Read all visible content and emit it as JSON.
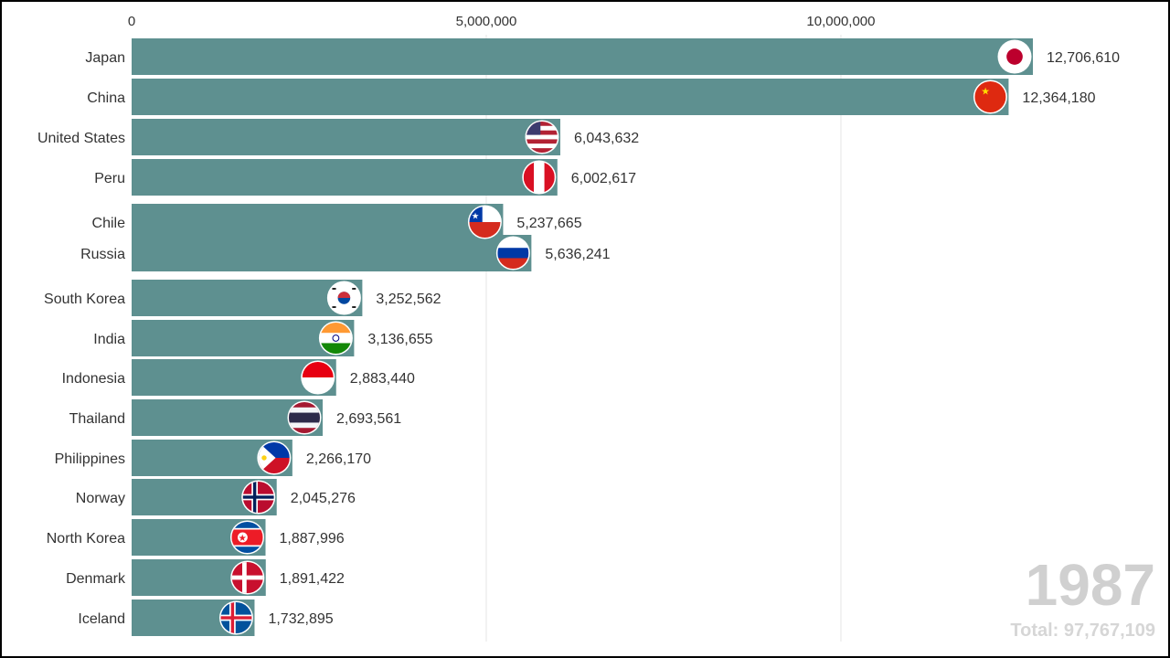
{
  "chart_data": {
    "type": "bar",
    "orientation": "horizontal",
    "bar_color": "#5e9090",
    "grid": true,
    "xlim": [
      0,
      12706610
    ],
    "x_ticks": [
      {
        "value": 0,
        "label": "0"
      },
      {
        "value": 5000000,
        "label": "5,000,000"
      },
      {
        "value": 10000000,
        "label": "10,000,000"
      }
    ],
    "categories": [
      "Japan",
      "China",
      "United States",
      "Peru",
      "Chile",
      "Russia",
      "South Korea",
      "India",
      "Indonesia",
      "Thailand",
      "Philippines",
      "Norway",
      "North Korea",
      "Denmark",
      "Iceland"
    ],
    "values": [
      12706610,
      12364180,
      6043632,
      6002617,
      5237665,
      5636241,
      3252562,
      3136655,
      2883440,
      2693561,
      2266170,
      2045276,
      1887996,
      1891422,
      1732895
    ],
    "value_labels": [
      "12,706,610",
      "12,364,180",
      "6,043,632",
      "6,002,617",
      "5,237,665",
      "5,636,241",
      "3,252,562",
      "3,136,655",
      "2,883,440",
      "2,693,561",
      "2,266,170",
      "2,045,276",
      "1,887,996",
      "1,891,422",
      "1,732,895"
    ],
    "flags": [
      "japan-flag",
      "china-flag",
      "united-states-flag",
      "peru-flag",
      "chile-flag",
      "russia-flag",
      "south-korea-flag",
      "india-flag",
      "indonesia-flag",
      "thailand-flag",
      "philippines-flag",
      "norway-flag",
      "north-korea-flag",
      "denmark-flag",
      "iceland-flag"
    ],
    "year": "1987",
    "total_label": "Total: 97,767,109"
  }
}
